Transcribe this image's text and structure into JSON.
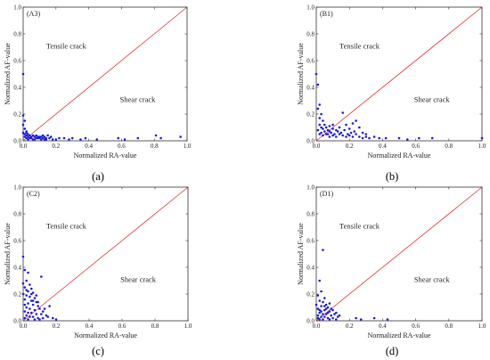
{
  "chart_data": [
    {
      "type": "scatter",
      "panel_label": "(A3)",
      "caption": "(a)",
      "xlabel": "Normalized RA-value",
      "ylabel": "Normalized AF-value",
      "xlim": [
        0,
        1.0
      ],
      "ylim": [
        0,
        1.0
      ],
      "xticks": [
        "0.0",
        "0.2",
        "0.4",
        "0.6",
        "0.8",
        "1.0"
      ],
      "yticks": [
        "0.0",
        "0.2",
        "0.4",
        "0.6",
        "0.8",
        "1.0"
      ],
      "regions": [
        "Tensile crack",
        "Shear crack"
      ],
      "divider": [
        [
          0,
          0
        ],
        [
          1,
          1
        ]
      ],
      "point_color": "#1a1adb",
      "line_color": "#e03030",
      "points": [
        [
          0.0,
          0.5
        ],
        [
          0.0,
          0.19
        ],
        [
          0.01,
          0.15
        ],
        [
          0.0,
          0.12
        ],
        [
          0.01,
          0.09
        ],
        [
          0.02,
          0.07
        ],
        [
          0.0,
          0.06
        ],
        [
          0.01,
          0.05
        ],
        [
          0.02,
          0.04
        ],
        [
          0.03,
          0.05
        ],
        [
          0.04,
          0.04
        ],
        [
          0.05,
          0.03
        ],
        [
          0.06,
          0.04
        ],
        [
          0.07,
          0.03
        ],
        [
          0.08,
          0.04
        ],
        [
          0.09,
          0.03
        ],
        [
          0.1,
          0.02
        ],
        [
          0.11,
          0.03
        ],
        [
          0.12,
          0.02
        ],
        [
          0.13,
          0.03
        ],
        [
          0.14,
          0.02
        ],
        [
          0.15,
          0.04
        ],
        [
          0.02,
          0.02
        ],
        [
          0.03,
          0.01
        ],
        [
          0.05,
          0.02
        ],
        [
          0.07,
          0.01
        ],
        [
          0.09,
          0.02
        ],
        [
          0.11,
          0.01
        ],
        [
          0.13,
          0.01
        ],
        [
          0.16,
          0.02
        ],
        [
          0.18,
          0.01
        ],
        [
          0.2,
          0.01
        ],
        [
          0.22,
          0.02
        ],
        [
          0.25,
          0.02
        ],
        [
          0.28,
          0.01
        ],
        [
          0.3,
          0.02
        ],
        [
          0.35,
          0.01
        ],
        [
          0.38,
          0.02
        ],
        [
          0.45,
          0.01
        ],
        [
          0.58,
          0.02
        ],
        [
          0.62,
          0.01
        ],
        [
          0.7,
          0.02
        ],
        [
          0.81,
          0.04
        ],
        [
          0.84,
          0.02
        ],
        [
          0.96,
          0.03
        ],
        [
          0.04,
          0.02
        ],
        [
          0.06,
          0.01
        ],
        [
          0.08,
          0.02
        ],
        [
          0.1,
          0.03
        ],
        [
          0.01,
          0.03
        ],
        [
          0.02,
          0.06
        ],
        [
          0.03,
          0.03
        ],
        [
          0.12,
          0.04
        ],
        [
          0.14,
          0.01
        ],
        [
          0.17,
          0.03
        ]
      ]
    },
    {
      "type": "scatter",
      "panel_label": "(B1)",
      "caption": "(b)",
      "xlabel": "Normalized RA-value",
      "ylabel": "Normalized AF-value",
      "xlim": [
        0,
        1.0
      ],
      "ylim": [
        0,
        1.0
      ],
      "xticks": [
        "0.0",
        "0.2",
        "0.4",
        "0.6",
        "0.8",
        "1.0"
      ],
      "yticks": [
        "0.0",
        "0.2",
        "0.4",
        "0.6",
        "0.8",
        "1.0"
      ],
      "regions": [
        "Tensile crack",
        "Shear crack"
      ],
      "divider": [
        [
          0,
          0
        ],
        [
          1,
          1
        ]
      ],
      "point_color": "#1a1adb",
      "line_color": "#e03030",
      "points": [
        [
          0.0,
          0.5
        ],
        [
          0.01,
          0.42
        ],
        [
          0.02,
          0.27
        ],
        [
          0.01,
          0.24
        ],
        [
          0.03,
          0.2
        ],
        [
          0.02,
          0.17
        ],
        [
          0.04,
          0.15
        ],
        [
          0.05,
          0.12
        ],
        [
          0.03,
          0.1
        ],
        [
          0.06,
          0.1
        ],
        [
          0.07,
          0.08
        ],
        [
          0.08,
          0.07
        ],
        [
          0.1,
          0.09
        ],
        [
          0.12,
          0.08
        ],
        [
          0.14,
          0.1
        ],
        [
          0.16,
          0.21
        ],
        [
          0.18,
          0.12
        ],
        [
          0.2,
          0.09
        ],
        [
          0.22,
          0.13
        ],
        [
          0.24,
          0.15
        ],
        [
          0.26,
          0.1
        ],
        [
          0.28,
          0.06
        ],
        [
          0.3,
          0.05
        ],
        [
          0.02,
          0.05
        ],
        [
          0.04,
          0.04
        ],
        [
          0.06,
          0.05
        ],
        [
          0.08,
          0.03
        ],
        [
          0.1,
          0.04
        ],
        [
          0.12,
          0.03
        ],
        [
          0.14,
          0.05
        ],
        [
          0.16,
          0.04
        ],
        [
          0.18,
          0.03
        ],
        [
          0.2,
          0.04
        ],
        [
          0.22,
          0.03
        ],
        [
          0.24,
          0.05
        ],
        [
          0.26,
          0.03
        ],
        [
          0.28,
          0.02
        ],
        [
          0.3,
          0.03
        ],
        [
          0.32,
          0.02
        ],
        [
          0.35,
          0.03
        ],
        [
          0.38,
          0.02
        ],
        [
          0.42,
          0.02
        ],
        [
          0.5,
          0.02
        ],
        [
          0.55,
          0.01
        ],
        [
          0.62,
          0.02
        ],
        [
          0.7,
          0.02
        ],
        [
          1.0,
          0.02
        ],
        [
          0.01,
          0.08
        ],
        [
          0.03,
          0.06
        ],
        [
          0.05,
          0.07
        ],
        [
          0.07,
          0.05
        ],
        [
          0.09,
          0.06
        ],
        [
          0.11,
          0.05
        ],
        [
          0.13,
          0.07
        ],
        [
          0.15,
          0.06
        ],
        [
          0.17,
          0.08
        ],
        [
          0.19,
          0.05
        ],
        [
          0.21,
          0.06
        ],
        [
          0.23,
          0.07
        ],
        [
          0.02,
          0.12
        ],
        [
          0.04,
          0.09
        ],
        [
          0.1,
          0.12
        ],
        [
          0.08,
          0.11
        ]
      ]
    },
    {
      "type": "scatter",
      "panel_label": "(C2)",
      "caption": "(c)",
      "xlabel": "Normalized RA-value",
      "ylabel": "Normalized AF-value",
      "xlim": [
        0,
        1.0
      ],
      "ylim": [
        0,
        1.0
      ],
      "xticks": [
        "0.0",
        "0.2",
        "0.4",
        "0.6",
        "0.8",
        "1.0"
      ],
      "yticks": [
        "0.0",
        "0.2",
        "0.4",
        "0.6",
        "0.8",
        "1.0"
      ],
      "regions": [
        "Tensile crack",
        "Shear crack"
      ],
      "divider": [
        [
          0,
          0
        ],
        [
          1,
          1
        ]
      ],
      "point_color": "#1a1adb",
      "line_color": "#e03030",
      "points": [
        [
          0.0,
          0.48
        ],
        [
          0.01,
          0.38
        ],
        [
          0.03,
          0.36
        ],
        [
          0.11,
          0.33
        ],
        [
          0.02,
          0.3
        ],
        [
          0.04,
          0.27
        ],
        [
          0.01,
          0.25
        ],
        [
          0.05,
          0.24
        ],
        [
          0.03,
          0.22
        ],
        [
          0.06,
          0.21
        ],
        [
          0.02,
          0.19
        ],
        [
          0.04,
          0.18
        ],
        [
          0.07,
          0.17
        ],
        [
          0.01,
          0.16
        ],
        [
          0.05,
          0.15
        ],
        [
          0.08,
          0.14
        ],
        [
          0.03,
          0.13
        ],
        [
          0.06,
          0.12
        ],
        [
          0.09,
          0.11
        ],
        [
          0.02,
          0.1
        ],
        [
          0.04,
          0.09
        ],
        [
          0.07,
          0.08
        ],
        [
          0.1,
          0.09
        ],
        [
          0.12,
          0.07
        ],
        [
          0.01,
          0.07
        ],
        [
          0.03,
          0.06
        ],
        [
          0.05,
          0.06
        ],
        [
          0.08,
          0.05
        ],
        [
          0.11,
          0.05
        ],
        [
          0.14,
          0.04
        ],
        [
          0.02,
          0.04
        ],
        [
          0.04,
          0.03
        ],
        [
          0.06,
          0.03
        ],
        [
          0.09,
          0.02
        ],
        [
          0.12,
          0.02
        ],
        [
          0.15,
          0.03
        ],
        [
          0.18,
          0.02
        ],
        [
          0.2,
          0.01
        ],
        [
          0.01,
          0.02
        ],
        [
          0.03,
          0.01
        ],
        [
          0.07,
          0.01
        ],
        [
          0.1,
          0.01
        ],
        [
          0.16,
          0.11
        ],
        [
          0.13,
          0.09
        ],
        [
          0.0,
          0.28
        ],
        [
          0.02,
          0.23
        ],
        [
          0.05,
          0.2
        ],
        [
          0.08,
          0.19
        ],
        [
          0.01,
          0.12
        ],
        [
          0.06,
          0.15
        ],
        [
          0.09,
          0.14
        ],
        [
          0.0,
          0.2
        ]
      ]
    },
    {
      "type": "scatter",
      "panel_label": "(D1)",
      "caption": "(d)",
      "xlabel": "Normalized RA-value",
      "ylabel": "Normalized AF-value",
      "xlim": [
        0,
        1.0
      ],
      "ylim": [
        0,
        1.0
      ],
      "xticks": [
        "0.0",
        "0.2",
        "0.4",
        "0.6",
        "0.8",
        "1.0"
      ],
      "yticks": [
        "0.0",
        "0.2",
        "0.4",
        "0.6",
        "0.8",
        "1.0"
      ],
      "regions": [
        "Tensile crack",
        "Shear crack"
      ],
      "divider": [
        [
          0,
          0
        ],
        [
          1,
          1
        ]
      ],
      "point_color": "#1a1adb",
      "line_color": "#e03030",
      "points": [
        [
          0.04,
          0.53
        ],
        [
          0.02,
          0.3
        ],
        [
          0.03,
          0.22
        ],
        [
          0.01,
          0.19
        ],
        [
          0.05,
          0.17
        ],
        [
          0.02,
          0.15
        ],
        [
          0.04,
          0.14
        ],
        [
          0.06,
          0.12
        ],
        [
          0.03,
          0.11
        ],
        [
          0.07,
          0.1
        ],
        [
          0.01,
          0.09
        ],
        [
          0.05,
          0.08
        ],
        [
          0.08,
          0.07
        ],
        [
          0.02,
          0.06
        ],
        [
          0.04,
          0.05
        ],
        [
          0.06,
          0.05
        ],
        [
          0.09,
          0.04
        ],
        [
          0.11,
          0.05
        ],
        [
          0.03,
          0.03
        ],
        [
          0.05,
          0.03
        ],
        [
          0.07,
          0.02
        ],
        [
          0.1,
          0.02
        ],
        [
          0.13,
          0.03
        ],
        [
          0.01,
          0.02
        ],
        [
          0.02,
          0.01
        ],
        [
          0.04,
          0.01
        ],
        [
          0.08,
          0.01
        ],
        [
          0.12,
          0.01
        ],
        [
          0.24,
          0.02
        ],
        [
          0.27,
          0.01
        ],
        [
          0.35,
          0.02
        ],
        [
          0.43,
          0.01
        ],
        [
          0.0,
          0.12
        ],
        [
          0.02,
          0.08
        ],
        [
          0.06,
          0.09
        ],
        [
          0.08,
          0.13
        ],
        [
          0.1,
          0.08
        ],
        [
          0.12,
          0.06
        ],
        [
          0.14,
          0.04
        ],
        [
          0.03,
          0.07
        ],
        [
          0.05,
          0.11
        ],
        [
          0.07,
          0.06
        ],
        [
          0.09,
          0.09
        ],
        [
          0.01,
          0.04
        ]
      ]
    }
  ]
}
